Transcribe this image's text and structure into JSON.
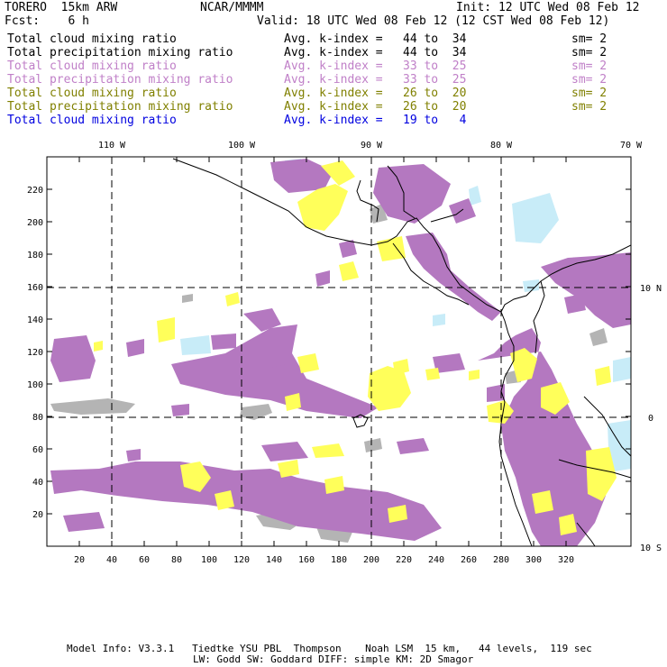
{
  "header": {
    "model": "TORERO  15km ARW",
    "org": "NCAR/MMMM",
    "init": "Init: 12 UTC Wed 08 Feb 12",
    "fcst": "Fcst:    6 h",
    "valid": "Valid: 18 UTC Wed 08 Feb 12 (12 CST Wed 08 Feb 12)"
  },
  "legend": [
    {
      "field": "Total cloud mixing ratio",
      "kindex": "Avg. k-index = ",
      "range": "44 to  34",
      "sm": "sm= 2",
      "color": "#000000"
    },
    {
      "field": "Total precipitation mixing ratio",
      "kindex": "Avg. k-index = ",
      "range": "44 to  34",
      "sm": "sm= 2",
      "color": "#000000"
    },
    {
      "field": "Total cloud mixing ratio",
      "kindex": "Avg. k-index = ",
      "range": "33 to  25",
      "sm": "sm= 2",
      "color": "#c080c8"
    },
    {
      "field": "Total precipitation mixing ratio",
      "kindex": "Avg. k-index = ",
      "range": "33 to  25",
      "sm": "sm= 2",
      "color": "#c080c8"
    },
    {
      "field": "Total cloud mixing ratio",
      "kindex": "Avg. k-index = ",
      "range": "26 to  20",
      "sm": "sm= 2",
      "color": "#808000"
    },
    {
      "field": "Total precipitation mixing ratio",
      "kindex": "Avg. k-index = ",
      "range": "26 to  20",
      "sm": "sm= 2",
      "color": "#808000"
    },
    {
      "field": "Total cloud mixing ratio",
      "kindex": "Avg. k-index = ",
      "range": "19 to   4",
      "sm": "",
      "color": "#0000e0"
    }
  ],
  "map": {
    "lon_labels": [
      "110 W",
      "100 W",
      "90 W",
      "80 W",
      "70 W"
    ],
    "lat_labels": [
      "10 N",
      "0",
      "10 S"
    ],
    "x_ticks": [
      "20",
      "40",
      "60",
      "80",
      "100",
      "120",
      "140",
      "160",
      "180",
      "200",
      "220",
      "240",
      "260",
      "280",
      "300",
      "320"
    ],
    "y_ticks": [
      "220",
      "200",
      "180",
      "160",
      "140",
      "120",
      "100",
      "80",
      "60",
      "40",
      "20"
    ],
    "colors": {
      "gray": "#b4b4b4",
      "purple": "#b478c0",
      "yellow": "#ffff5a",
      "light_blue": "#c8ecf8",
      "coast": "#000000",
      "grid": "#000000"
    }
  },
  "footer": {
    "line1": "Model Info: V3.3.1   Tiedtke YSU PBL  Thompson    Noah LSM  15 km,   44 levels,  119 sec",
    "line2": "LW: Godd SW: Goddard DIFF: simple KM: 2D Smagor"
  }
}
